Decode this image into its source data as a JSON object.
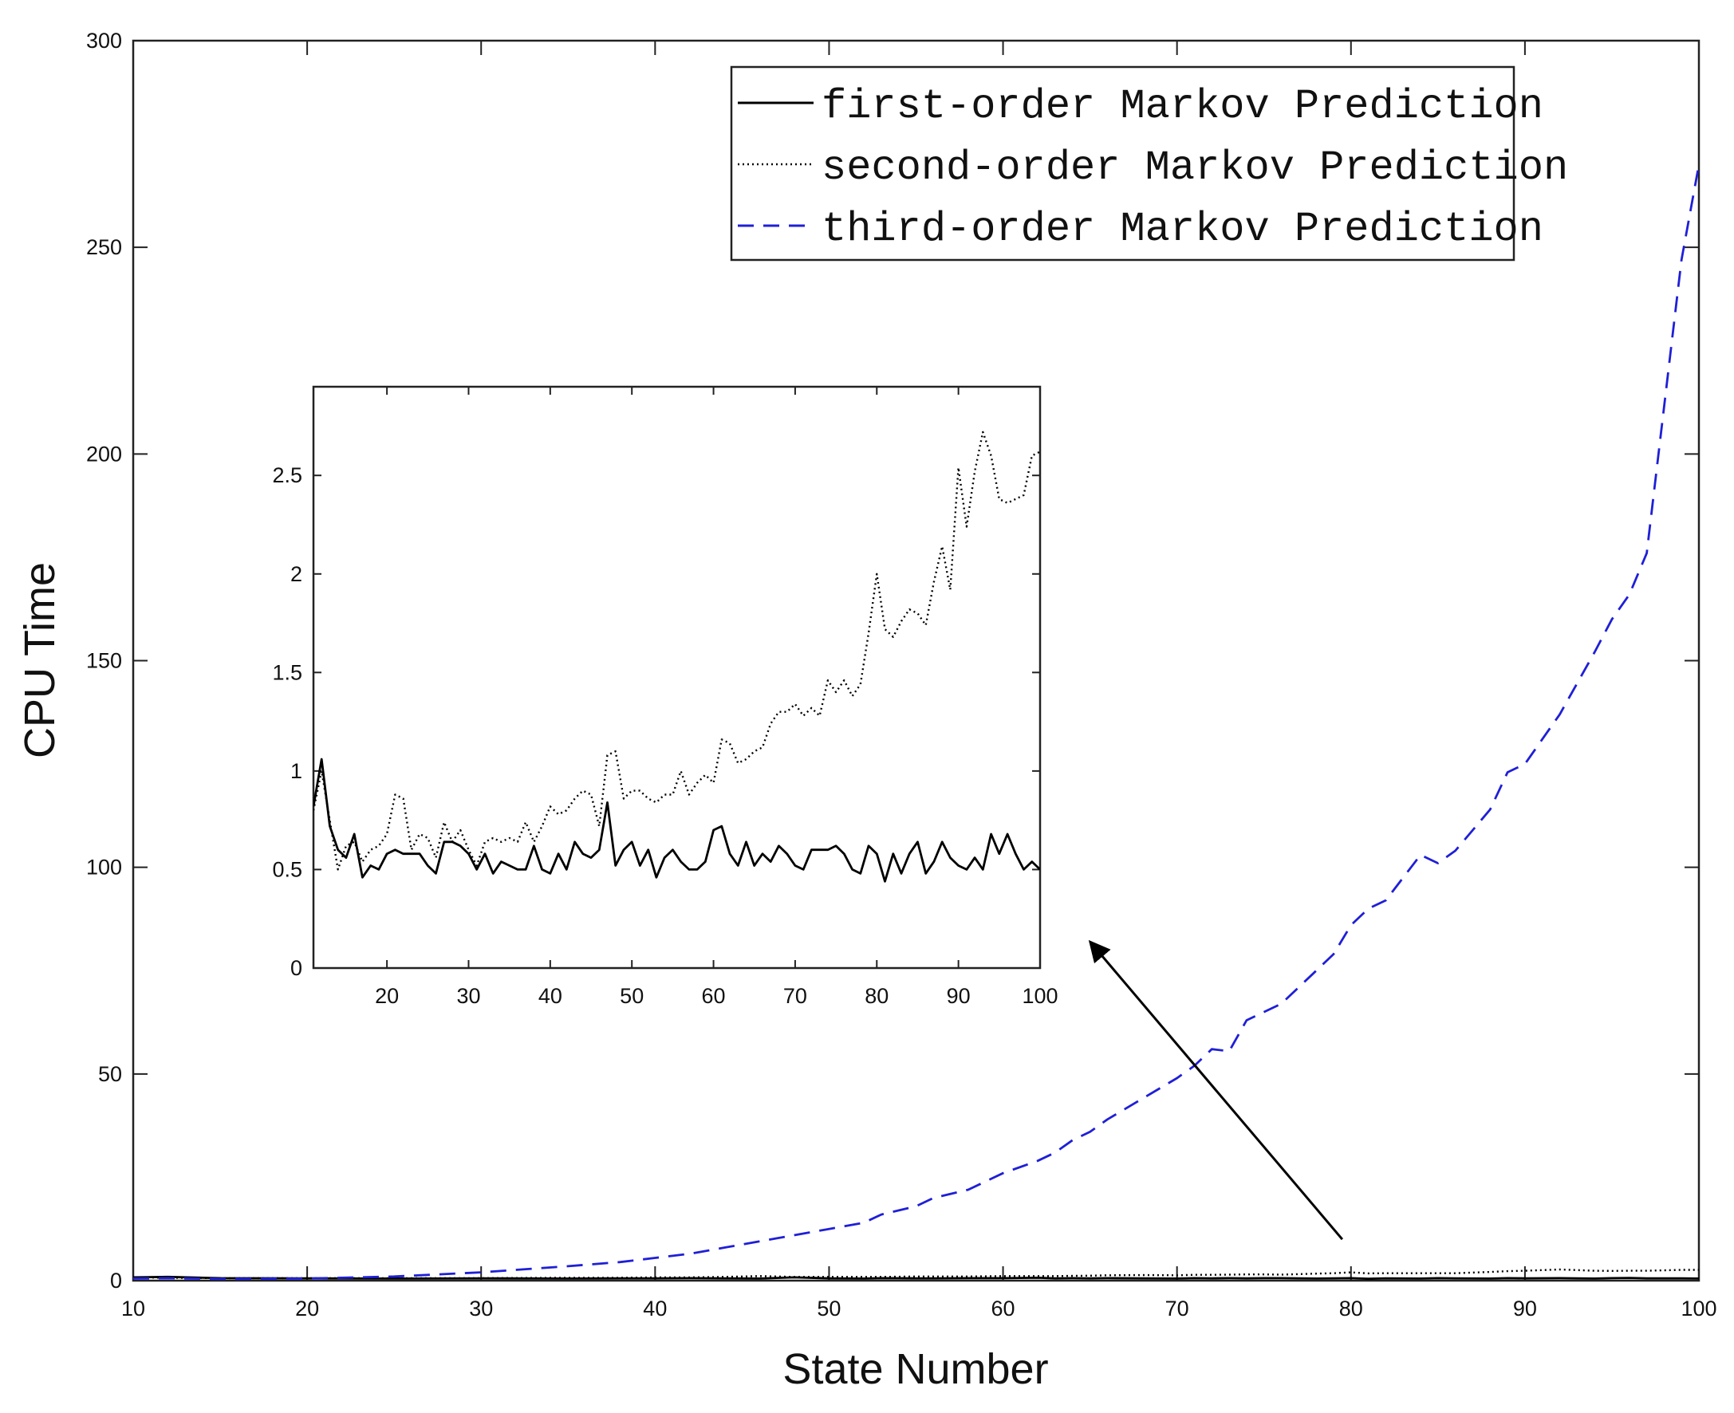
{
  "chart_data": [
    {
      "id": "main",
      "type": "line",
      "title": "",
      "xlabel": "State Number",
      "ylabel": "CPU Time",
      "xlim": [
        10,
        100
      ],
      "ylim": [
        0,
        300
      ],
      "xticks": [
        10,
        20,
        30,
        40,
        50,
        60,
        70,
        80,
        90,
        100
      ],
      "yticks": [
        0,
        50,
        100,
        150,
        200,
        250,
        300
      ],
      "grid": false,
      "legend_position": "top-right",
      "x": [
        10,
        12,
        15,
        20,
        25,
        30,
        35,
        38,
        40,
        42,
        44,
        46,
        48,
        50,
        52,
        53,
        55,
        56,
        58,
        60,
        62,
        63,
        64,
        65,
        66,
        68,
        70,
        71,
        72,
        73,
        74,
        75,
        76,
        78,
        79,
        80,
        81,
        82,
        84,
        85,
        86,
        88,
        89,
        90,
        92,
        94,
        95,
        96,
        97,
        99,
        100
      ],
      "series": [
        {
          "name": "first-order Markov Prediction",
          "color": "#000000",
          "style": "solid",
          "values": [
            0.8,
            0.9,
            0.6,
            0.55,
            0.5,
            0.55,
            0.5,
            0.55,
            0.55,
            0.6,
            0.55,
            0.5,
            0.8,
            0.55,
            0.5,
            0.6,
            0.55,
            0.55,
            0.6,
            0.6,
            0.7,
            0.55,
            0.6,
            0.55,
            0.6,
            0.55,
            0.5,
            0.6,
            0.55,
            0.6,
            0.55,
            0.6,
            0.6,
            0.5,
            0.55,
            0.6,
            0.45,
            0.55,
            0.5,
            0.6,
            0.55,
            0.5,
            0.6,
            0.55,
            0.6,
            0.5,
            0.6,
            0.65,
            0.55,
            0.55,
            0.5
          ]
        },
        {
          "name": "second-order Markov Prediction",
          "color": "#000000",
          "style": "dotted",
          "values": [
            0.8,
            0.7,
            0.6,
            0.6,
            0.6,
            0.6,
            0.7,
            0.7,
            0.8,
            0.8,
            0.9,
            1.1,
            0.9,
            0.9,
            0.9,
            0.9,
            1.0,
            1.0,
            1.0,
            1.1,
            1.1,
            1.1,
            1.15,
            1.2,
            1.3,
            1.35,
            1.3,
            1.4,
            1.4,
            1.45,
            1.5,
            1.5,
            1.45,
            1.7,
            1.8,
            2.0,
            1.75,
            1.8,
            1.8,
            1.8,
            1.8,
            2.1,
            2.3,
            2.4,
            2.7,
            2.4,
            2.35,
            2.4,
            2.4,
            2.6,
            2.6
          ]
        },
        {
          "name": "third-order Markov Prediction",
          "color": "#1f1fd8",
          "style": "dashed",
          "values": [
            0.5,
            0.6,
            0.4,
            0.5,
            1.0,
            2.0,
            3.5,
            4.5,
            5.5,
            6.5,
            8.0,
            9.5,
            11.0,
            12.5,
            14.0,
            16.0,
            18.0,
            20.0,
            22.0,
            26.0,
            29.0,
            31.0,
            34.0,
            36.0,
            39.0,
            44.0,
            49.0,
            52.0,
            56.0,
            55.5,
            63.0,
            65.0,
            67.0,
            75.0,
            79.0,
            86.0,
            90.0,
            92.0,
            103.0,
            101.0,
            104.0,
            114.0,
            123.0,
            125.0,
            137.0,
            152.0,
            160.0,
            166.0,
            176.0,
            247.0,
            270.0
          ]
        }
      ],
      "annotations": [
        {
          "type": "arrow",
          "from": [
            79.5,
            10
          ],
          "to": [
            65,
            82
          ]
        }
      ]
    },
    {
      "id": "inset",
      "type": "line",
      "title": "",
      "xlabel": "",
      "ylabel": "",
      "xlim": [
        11,
        100
      ],
      "ylim": [
        0,
        2.95
      ],
      "xticks": [
        20,
        30,
        40,
        50,
        60,
        70,
        80,
        90,
        100
      ],
      "yticks": [
        0,
        0.5,
        1,
        1.5,
        2,
        2.5
      ],
      "xtick_labels": [
        "20",
        "30",
        "40",
        "50",
        "60",
        "70",
        "80",
        "90",
        "100"
      ],
      "ytick_labels": [
        "0",
        "0.5",
        "1",
        "1.5",
        "2",
        "2.5"
      ],
      "grid": false,
      "series": [
        {
          "name": "first-order Markov Prediction",
          "color": "#000000",
          "style": "solid",
          "x": [
            11,
            12,
            13,
            14,
            15,
            16,
            17,
            18,
            19,
            20,
            21,
            22,
            23,
            24,
            25,
            26,
            27,
            28,
            29,
            30,
            31,
            32,
            33,
            34,
            35,
            36,
            37,
            38,
            39,
            40,
            41,
            42,
            43,
            44,
            45,
            46,
            47,
            48,
            49,
            50,
            51,
            52,
            53,
            54,
            55,
            56,
            57,
            58,
            59,
            60,
            61,
            62,
            63,
            64,
            65,
            66,
            67,
            68,
            69,
            70,
            71,
            72,
            73,
            74,
            75,
            76,
            77,
            78,
            79,
            80,
            81,
            82,
            83,
            84,
            85,
            86,
            87,
            88,
            89,
            90,
            91,
            92,
            93,
            94,
            95,
            96,
            97,
            98,
            99,
            100
          ],
          "values": [
            0.82,
            1.06,
            0.72,
            0.6,
            0.56,
            0.68,
            0.46,
            0.52,
            0.5,
            0.58,
            0.6,
            0.58,
            0.58,
            0.58,
            0.52,
            0.48,
            0.64,
            0.64,
            0.62,
            0.58,
            0.5,
            0.58,
            0.48,
            0.54,
            0.52,
            0.5,
            0.5,
            0.62,
            0.5,
            0.48,
            0.58,
            0.5,
            0.64,
            0.58,
            0.56,
            0.6,
            0.84,
            0.52,
            0.6,
            0.64,
            0.52,
            0.6,
            0.46,
            0.56,
            0.6,
            0.54,
            0.5,
            0.5,
            0.54,
            0.7,
            0.72,
            0.58,
            0.52,
            0.64,
            0.52,
            0.58,
            0.54,
            0.62,
            0.58,
            0.52,
            0.5,
            0.6,
            0.6,
            0.6,
            0.62,
            0.58,
            0.5,
            0.48,
            0.62,
            0.58,
            0.44,
            0.58,
            0.48,
            0.58,
            0.64,
            0.48,
            0.54,
            0.64,
            0.56,
            0.52,
            0.5,
            0.56,
            0.5,
            0.68,
            0.58,
            0.68,
            0.58,
            0.5,
            0.54,
            0.5
          ]
        },
        {
          "name": "second-order Markov Prediction",
          "color": "#000000",
          "style": "dotted",
          "values": [
            0.8,
            1.0,
            0.75,
            0.5,
            0.62,
            0.64,
            0.54,
            0.6,
            0.62,
            0.68,
            0.88,
            0.86,
            0.6,
            0.68,
            0.66,
            0.56,
            0.74,
            0.64,
            0.7,
            0.6,
            0.52,
            0.64,
            0.66,
            0.64,
            0.66,
            0.64,
            0.74,
            0.64,
            0.72,
            0.82,
            0.78,
            0.8,
            0.86,
            0.9,
            0.88,
            0.72,
            1.08,
            1.1,
            0.86,
            0.9,
            0.9,
            0.86,
            0.84,
            0.88,
            0.88,
            1.0,
            0.88,
            0.94,
            0.98,
            0.94,
            1.16,
            1.14,
            1.04,
            1.06,
            1.1,
            1.12,
            1.24,
            1.3,
            1.3,
            1.34,
            1.28,
            1.32,
            1.28,
            1.46,
            1.4,
            1.46,
            1.38,
            1.44,
            1.7,
            2.0,
            1.72,
            1.68,
            1.76,
            1.82,
            1.8,
            1.74,
            1.96,
            2.14,
            1.92,
            2.54,
            2.24,
            2.52,
            2.72,
            2.6,
            2.38,
            2.36,
            2.38,
            2.4,
            2.6,
            2.62
          ],
          "x": [
            11,
            12,
            13,
            14,
            15,
            16,
            17,
            18,
            19,
            20,
            21,
            22,
            23,
            24,
            25,
            26,
            27,
            28,
            29,
            30,
            31,
            32,
            33,
            34,
            35,
            36,
            37,
            38,
            39,
            40,
            41,
            42,
            43,
            44,
            45,
            46,
            47,
            48,
            49,
            50,
            51,
            52,
            53,
            54,
            55,
            56,
            57,
            58,
            59,
            60,
            61,
            62,
            63,
            64,
            65,
            66,
            67,
            68,
            69,
            70,
            71,
            72,
            73,
            74,
            75,
            76,
            77,
            78,
            79,
            80,
            81,
            82,
            83,
            84,
            85,
            86,
            87,
            88,
            89,
            90,
            91,
            92,
            93,
            94,
            95,
            96,
            97,
            98,
            99,
            100
          ]
        }
      ]
    }
  ]
}
